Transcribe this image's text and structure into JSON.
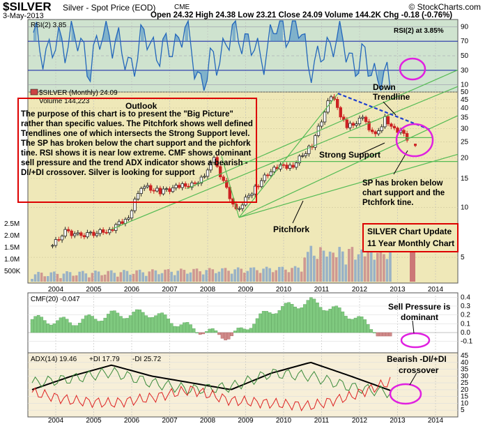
{
  "header": {
    "symbol": "$SILVER",
    "name": "Silver - Spot Price (EOD)",
    "exchange": "CME",
    "credit": "© StockCharts.com",
    "date": "3-May-2013",
    "ohlc": "Open 24.32   High 24.38   Low 23.21   Close 24.09   Volume 144.2K   Chg -0.18 (-0.76%)",
    "ohlc_chg_color": "#cc0000"
  },
  "colors": {
    "panel_bg": "#efe8b8",
    "rsi_bg": "#cfe3cf",
    "up": "#222222",
    "down": "#cc2222",
    "green": "#55bb55",
    "annot_red": "#dd0000",
    "magenta": "#e020e0",
    "trend_blue": "#1f3fcf"
  },
  "panels": {
    "rsi": {
      "title": "RSI(2) 3.85",
      "annotation": "RSI(2) at 3.85%",
      "ticks": [
        "90",
        "70",
        "50",
        "30",
        "10"
      ]
    },
    "price": {
      "title": "$SILVER (Monthly) 24.09",
      "volume_label": "Volume 144,223",
      "right_ticks": [
        "50",
        "45",
        "40",
        "35",
        "30",
        "25",
        "20",
        "15",
        "10",
        "5"
      ],
      "volume_ticks": [
        "2.5M",
        "2.0M",
        "1.5M",
        "1.0M",
        "500K"
      ]
    },
    "cmf": {
      "title": "CMF(20) -0.047",
      "ticks": [
        "0.4",
        "0.3",
        "0.2",
        "0.1",
        "0.0",
        "-0.1"
      ],
      "annotation_line1": "Sell Pressure is",
      "annotation_line2": "dominant"
    },
    "adx": {
      "title_adx": "ADX(14) 19.46",
      "title_pdi": "+DI 17.79",
      "title_mdi": "-DI 25.72",
      "ticks": [
        "45",
        "40",
        "35",
        "30",
        "25",
        "20",
        "15",
        "10",
        "5"
      ],
      "annotation_line1": "Bearish -DI/+DI",
      "annotation_line2": "crossover"
    }
  },
  "x_axis_years": [
    "2004",
    "2005",
    "2006",
    "2007",
    "2008",
    "2009",
    "2010",
    "2011",
    "2012",
    "2013",
    "2014"
  ],
  "annotations": {
    "outlook_title": "Outlook",
    "outlook_text": "The purpose of this chart is to present the \"Big Picture\" rather than specific values. The Pitchfork shows well defined Trendlines one of which intersects the Strong Support level. The SP has broken below the chart support and the pichfork tine. RSI shows it is near low extreme. CMF shows dominant sell pressure and the trend ADX indicator shows a bearish -DI/+DI crossover. Silver is looking for support",
    "down_trendline": "Down\nTrendline",
    "strong_support": "Strong Support",
    "sp_broken": "SP has broken below\nchart support and the\nPtchfork tine.",
    "pitchfork": "Pitchfork",
    "update_line1": "SILVER Chart Update",
    "update_line2": "11 Year Monthly Chart"
  },
  "chart_data": [
    {
      "type": "line",
      "title": "RSI(2) 3.85",
      "x": [
        "2004-01",
        "2004-07",
        "2005-01",
        "2005-07",
        "2006-01",
        "2006-07",
        "2007-01",
        "2007-07",
        "2008-01",
        "2008-07",
        "2009-01",
        "2009-07",
        "2010-01",
        "2010-07",
        "2011-01",
        "2011-07",
        "2012-01",
        "2012-07",
        "2013-01",
        "2013-05"
      ],
      "series": [
        {
          "values": [
            70,
            55,
            80,
            40,
            90,
            35,
            75,
            50,
            88,
            10,
            60,
            85,
            45,
            90,
            92,
            30,
            80,
            45,
            35,
            3.85
          ]
        }
      ],
      "ylim": [
        0,
        100
      ]
    },
    {
      "type": "line",
      "title": "$SILVER (Monthly) 24.09",
      "scale": "log",
      "x": [
        "2003-12",
        "2004-04",
        "2004-08",
        "2004-12",
        "2005-06",
        "2005-12",
        "2006-04",
        "2006-10",
        "2007-04",
        "2007-10",
        "2008-03",
        "2008-10",
        "2009-04",
        "2009-10",
        "2010-04",
        "2010-10",
        "2011-04",
        "2011-09",
        "2012-02",
        "2012-06",
        "2012-09",
        "2012-12",
        "2013-03",
        "2013-05"
      ],
      "series": [
        {
          "name": "Close",
          "values": [
            5.9,
            7.2,
            6.8,
            6.9,
            7.3,
            8.8,
            13.5,
            12.5,
            13.4,
            13.9,
            19.5,
            9.5,
            13.2,
            17.6,
            18.0,
            24.0,
            48.0,
            30.5,
            34.5,
            27.0,
            34.5,
            30.0,
            28.5,
            24.09
          ]
        }
      ],
      "ylim": [
        4,
        50
      ]
    },
    {
      "type": "bar",
      "title": "CMF(20) -0.047",
      "categories": [
        "2004",
        "2005",
        "2006",
        "2007",
        "2008",
        "2009",
        "2010",
        "2011",
        "2012",
        "2013"
      ],
      "values": [
        0.15,
        0.12,
        0.2,
        0.22,
        0.05,
        -0.05,
        0.25,
        0.35,
        0.2,
        -0.047
      ],
      "ylim": [
        -0.15,
        0.45
      ]
    },
    {
      "type": "line",
      "title": "ADX(14) 19.46",
      "x": [
        "2004",
        "2005",
        "2006",
        "2007",
        "2008",
        "2009",
        "2010",
        "2011",
        "2012",
        "2013"
      ],
      "series": [
        {
          "name": "ADX(14) 19.46",
          "values": [
            20,
            30,
            38,
            30,
            25,
            20,
            32,
            40,
            30,
            19.46
          ]
        },
        {
          "name": "+DI 17.79",
          "values": [
            25,
            28,
            33,
            25,
            20,
            22,
            32,
            30,
            22,
            17.79
          ]
        },
        {
          "name": "-DI 25.72",
          "values": [
            18,
            12,
            10,
            14,
            20,
            12,
            10,
            8,
            15,
            25.72
          ]
        }
      ],
      "ylim": [
        0,
        45
      ]
    }
  ]
}
